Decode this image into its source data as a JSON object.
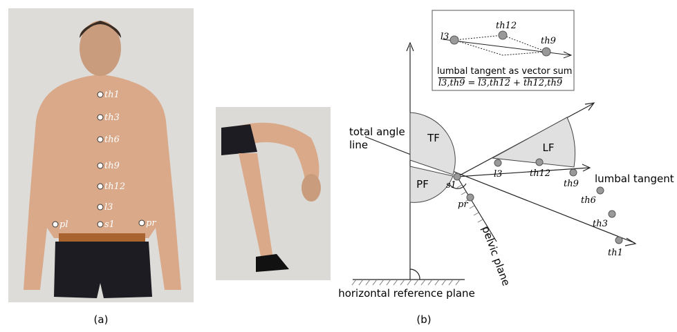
{
  "panel_a": {
    "label": "(a)",
    "markers": [
      "th1",
      "th3",
      "th6",
      "th9",
      "th12",
      "l3",
      "s1",
      "pl",
      "pr"
    ]
  },
  "panel_b": {
    "label": "(b)",
    "inset": {
      "points": [
        "l3",
        "th12",
        "th9"
      ],
      "caption": "lumbal tangent as vector sum",
      "equation": [
        "l3,th9",
        "=",
        "l3,th12",
        "+",
        "th12,th9"
      ]
    },
    "angles": [
      "TF",
      "PF",
      "LF"
    ],
    "total_angle_line": [
      "total angle",
      "line"
    ],
    "lumbal_tangent": "lumbal tangent",
    "pelvic_plane": "pelvic plane",
    "horizontal_reference_plane": "horizontal reference plane",
    "points": [
      "s1",
      "pr",
      "l3",
      "th12",
      "th9",
      "th6",
      "th3",
      "th1"
    ]
  }
}
